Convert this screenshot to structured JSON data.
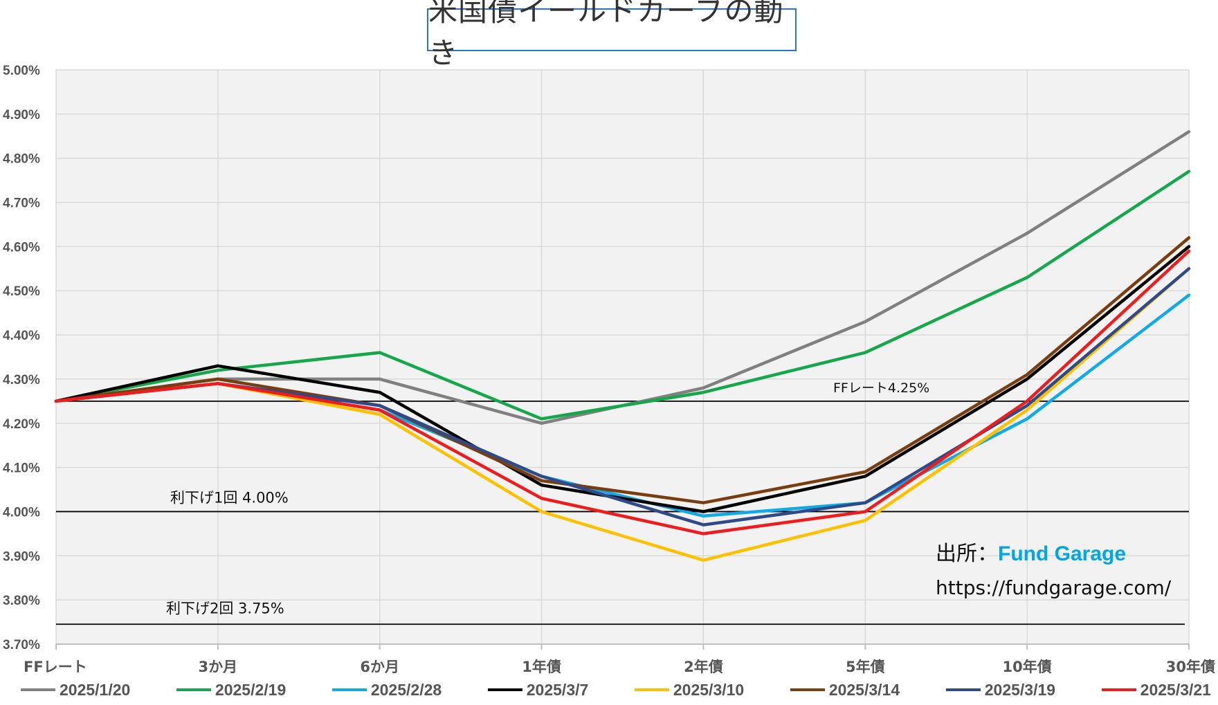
{
  "chart_data": {
    "type": "line",
    "title": "米国債イールドカーブの動き",
    "categories": [
      "FFレート",
      "3か月",
      "6か月",
      "1年債",
      "2年債",
      "5年債",
      "10年債",
      "30年債"
    ],
    "y_ticks": [
      "5.00%",
      "4.90%",
      "4.80%",
      "4.70%",
      "4.60%",
      "4.50%",
      "4.40%",
      "4.30%",
      "4.20%",
      "4.10%",
      "4.00%",
      "3.90%",
      "3.80%",
      "3.70%"
    ],
    "ylim": [
      3.7,
      5.0
    ],
    "grid": true,
    "legend_position": "bottom",
    "series": [
      {
        "name": "2025/1/20",
        "color": "#808080",
        "values": [
          4.25,
          4.3,
          4.3,
          4.2,
          4.28,
          4.43,
          4.63,
          4.86
        ]
      },
      {
        "name": "2025/2/19",
        "color": "#14a84a",
        "values": [
          4.25,
          4.32,
          4.36,
          4.21,
          4.27,
          4.36,
          4.53,
          4.77
        ]
      },
      {
        "name": "2025/2/28",
        "color": "#11a9e6",
        "values": [
          4.25,
          4.29,
          4.23,
          4.08,
          3.99,
          4.02,
          4.21,
          4.49
        ]
      },
      {
        "name": "2025/3/7",
        "color": "#000000",
        "values": [
          4.25,
          4.33,
          4.27,
          4.06,
          4.0,
          4.08,
          4.3,
          4.6
        ]
      },
      {
        "name": "2025/3/10",
        "color": "#ffc000",
        "values": [
          4.25,
          4.29,
          4.22,
          4.0,
          3.89,
          3.98,
          4.23,
          4.55
        ]
      },
      {
        "name": "2025/3/14",
        "color": "#7a3d10",
        "values": [
          4.25,
          4.3,
          4.24,
          4.07,
          4.02,
          4.09,
          4.31,
          4.62
        ]
      },
      {
        "name": "2025/3/19",
        "color": "#2f4a8a",
        "values": [
          4.25,
          4.29,
          4.24,
          4.08,
          3.97,
          4.02,
          4.24,
          4.55
        ]
      },
      {
        "name": "2025/3/21",
        "color": "#ee1c1c",
        "values": [
          4.25,
          4.29,
          4.23,
          4.03,
          3.95,
          4.0,
          4.25,
          4.59
        ]
      }
    ],
    "reference_lines": [
      {
        "value": 4.25,
        "label": "FFレート4.25%"
      },
      {
        "value": 4.0,
        "label": "利下げ1回 4.00%"
      },
      {
        "value": 3.745,
        "label": "利下げ2回 3.75%"
      }
    ]
  },
  "source": {
    "prefix": "出所：",
    "brand": "Fund Garage",
    "url": "https://fundgarage.com/"
  }
}
